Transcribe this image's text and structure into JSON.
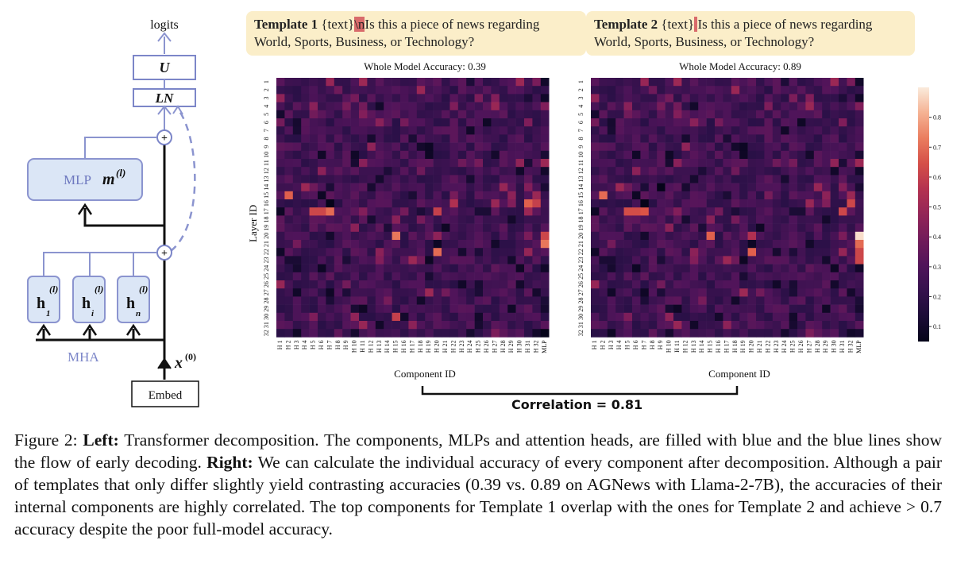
{
  "diagram": {
    "logits": "logits",
    "u": "U",
    "ln": "LN",
    "mlp": "MLP",
    "mlp_var": "m",
    "mlp_sup": "(l)",
    "mha": "MHA",
    "heads": [
      {
        "sym": "h",
        "sub": "1",
        "sup": "(l)"
      },
      {
        "sym": "h",
        "sub": "i",
        "sup": "(l)"
      },
      {
        "sym": "h",
        "sub": "n",
        "sup": "(l)"
      }
    ],
    "x_var": "x",
    "x_sup": "(0)",
    "embed": "Embed",
    "plus": "+"
  },
  "templates": [
    {
      "label": "Template 1",
      "pre": "{text}",
      "hl": "\\n",
      "post": "Is this a piece of news regarding",
      "line2": "World, Sports, Business, or Technology?"
    },
    {
      "label": "Template 2",
      "pre": "{text}",
      "hl": " ",
      "post": "Is this a piece of news regarding",
      "line2": "World, Sports, Business, or Technology?"
    }
  ],
  "chart_data": {
    "type": "heatmap",
    "ylabel": "Layer ID",
    "xlabel": "Component ID",
    "y_ticks": [
      "1",
      "2",
      "3",
      "4",
      "5",
      "6",
      "7",
      "8",
      "9",
      "10",
      "11",
      "12",
      "13",
      "14",
      "15",
      "16",
      "17",
      "18",
      "19",
      "20",
      "21",
      "22",
      "23",
      "24",
      "25",
      "26",
      "27",
      "28",
      "29",
      "30",
      "31",
      "32"
    ],
    "x_ticks": [
      "H 1",
      "H 2",
      "H 3",
      "H 4",
      "H 5",
      "H 6",
      "H 7",
      "H 8",
      "H 9",
      "H 10",
      "H 11",
      "H 12",
      "H 13",
      "H 14",
      "H 15",
      "H 16",
      "H 17",
      "H 18",
      "H 19",
      "H 20",
      "H 21",
      "H 22",
      "H 23",
      "H 24",
      "H 25",
      "H 26",
      "H 27",
      "H 28",
      "H 29",
      "H 30",
      "H 31",
      "H 32",
      "MLP"
    ],
    "colorbar": {
      "ticks": [
        "0.1",
        "0.2",
        "0.3",
        "0.4",
        "0.5",
        "0.6",
        "0.7",
        "0.8"
      ],
      "range": [
        0.05,
        0.9
      ]
    },
    "panels": [
      {
        "title": "Whole Model Accuracy: 0.39",
        "highlights": [
          [
            14,
            1,
            0.68
          ],
          [
            16,
            4,
            0.62
          ],
          [
            16,
            5,
            0.62
          ],
          [
            16,
            6,
            0.7
          ],
          [
            15,
            6,
            0.05
          ],
          [
            19,
            14,
            0.72
          ],
          [
            21,
            19,
            0.7
          ],
          [
            16,
            19,
            0.6
          ],
          [
            20,
            32,
            0.72
          ],
          [
            19,
            32,
            0.62
          ],
          [
            15,
            31,
            0.6
          ],
          [
            15,
            30,
            0.68
          ],
          [
            29,
            14,
            0.6
          ],
          [
            31,
            32,
            0.05
          ],
          [
            15,
            21,
            0.55
          ]
        ]
      },
      {
        "title": "Whole Model Accuracy: 0.89",
        "highlights": [
          [
            14,
            1,
            0.7
          ],
          [
            16,
            4,
            0.64
          ],
          [
            16,
            5,
            0.64
          ],
          [
            16,
            6,
            0.66
          ],
          [
            15,
            6,
            0.05
          ],
          [
            19,
            14,
            0.68
          ],
          [
            21,
            19,
            0.68
          ],
          [
            19,
            32,
            0.88
          ],
          [
            20,
            32,
            0.7
          ],
          [
            21,
            32,
            0.62
          ],
          [
            22,
            32,
            0.62
          ],
          [
            15,
            31,
            0.62
          ],
          [
            16,
            30,
            0.62
          ],
          [
            13,
            8,
            0.05
          ],
          [
            19,
            19,
            0.55
          ]
        ]
      }
    ]
  },
  "correlation": "Correlation = 0.81",
  "caption": {
    "fig": "Figure 2:",
    "left_label": "Left:",
    "left_text": "Transformer decomposition. The components, MLPs and attention heads, are filled with blue and the blue lines show the flow of early decoding.",
    "right_label": "Right:",
    "right_text": "We can calculate the individual accuracy of every component after decomposition. Although a pair of templates that only differ slightly yield contrasting accuracies (0.39 vs. 0.89 on AGNews with Llama-2-7B), the accuracies of their internal components are highly correlated. The top components for Template 1 overlap with the ones for Template 2 and achieve > 0.7 accuracy despite the poor full-model accuracy."
  }
}
